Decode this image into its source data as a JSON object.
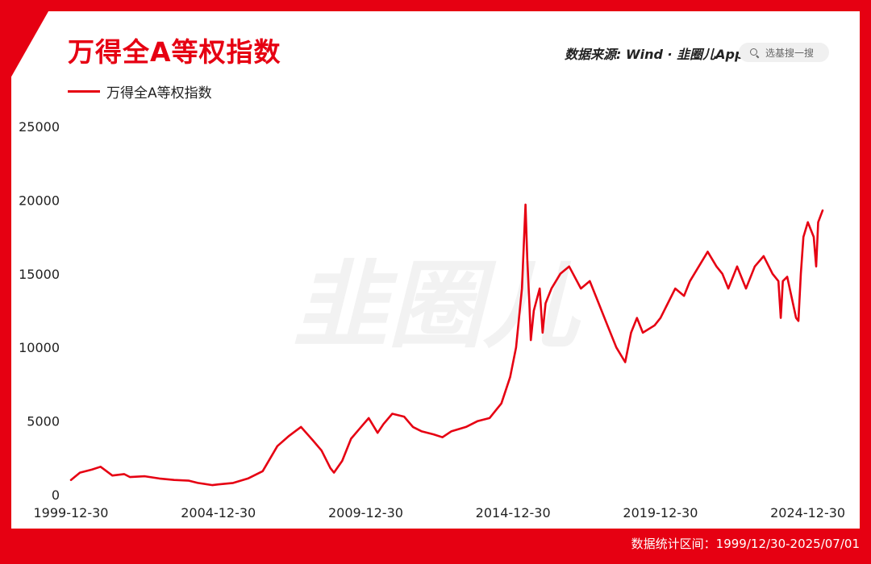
{
  "header": {
    "title": "万得全A等权指数",
    "source": "数据来源: Wind · 韭圈儿App",
    "search_placeholder": "选基搜一搜"
  },
  "footer": {
    "range": "数据统计区间：1999/12/30-2025/07/01"
  },
  "watermark": {
    "text": "韭圈儿"
  },
  "colors": {
    "accent": "#e60012",
    "background": "#ffffff",
    "watermark": "#f2f2f2"
  },
  "icons": {
    "search": "search-icon"
  },
  "chart_data": {
    "type": "line",
    "title": "万得全A等权指数",
    "legend": "top-left",
    "grid": false,
    "ylim": [
      0,
      25000
    ],
    "yticks": [
      0,
      5000,
      10000,
      15000,
      20000,
      25000
    ],
    "ytick_labels": [
      "0",
      "5000",
      "10000",
      "15000",
      "20000",
      "25000"
    ],
    "xlim": [
      1999.997,
      2025.5
    ],
    "xticks": [
      1999.997,
      2004.997,
      2009.997,
      2014.997,
      2019.997,
      2024.997
    ],
    "xtick_labels": [
      "1999-12-30",
      "2004-12-30",
      "2009-12-30",
      "2014-12-30",
      "2019-12-30",
      "2024-12-30"
    ],
    "series": [
      {
        "name": "万得全A等权指数",
        "color": "#e60012",
        "x": [
          1999.997,
          2000.3,
          2000.7,
          2001.0,
          2001.4,
          2001.6,
          2001.8,
          2002.0,
          2002.5,
          2003.0,
          2003.5,
          2004.0,
          2004.3,
          2004.8,
          2005.0,
          2005.5,
          2006.0,
          2006.5,
          2007.0,
          2007.4,
          2007.6,
          2007.8,
          2008.2,
          2008.5,
          2008.8,
          2008.92,
          2009.2,
          2009.5,
          2009.8,
          2010.1,
          2010.4,
          2010.6,
          2010.9,
          2011.3,
          2011.6,
          2011.9,
          2012.3,
          2012.6,
          2012.9,
          2013.4,
          2013.8,
          2014.2,
          2014.6,
          2014.9,
          2015.1,
          2015.3,
          2015.42,
          2015.48,
          2015.55,
          2015.6,
          2015.7,
          2015.9,
          2016.0,
          2016.1,
          2016.3,
          2016.6,
          2016.9,
          2017.3,
          2017.6,
          2017.9,
          2018.2,
          2018.5,
          2018.8,
          2019.0,
          2019.2,
          2019.4,
          2019.8,
          2020.0,
          2020.2,
          2020.5,
          2020.8,
          2021.0,
          2021.3,
          2021.6,
          2021.9,
          2022.1,
          2022.3,
          2022.6,
          2022.9,
          2023.2,
          2023.5,
          2023.8,
          2024.0,
          2024.08,
          2024.15,
          2024.3,
          2024.6,
          2024.68,
          2024.76,
          2024.85,
          2025.0,
          2025.2,
          2025.28,
          2025.35,
          2025.5
        ],
        "values": [
          1000,
          1500,
          1700,
          1900,
          1300,
          1350,
          1400,
          1200,
          1250,
          1100,
          1000,
          950,
          800,
          650,
          700,
          800,
          1100,
          1600,
          3300,
          4000,
          4300,
          4600,
          3700,
          3000,
          1800,
          1500,
          2300,
          3800,
          4500,
          5200,
          4200,
          4800,
          5500,
          5300,
          4600,
          4300,
          4100,
          3900,
          4300,
          4600,
          5000,
          5200,
          6200,
          8000,
          10000,
          14000,
          19700,
          16000,
          13000,
          10500,
          12500,
          14000,
          11000,
          13000,
          14000,
          15000,
          15500,
          14000,
          14500,
          13000,
          11500,
          10000,
          9000,
          11000,
          12000,
          11000,
          11500,
          12000,
          12800,
          14000,
          13500,
          14500,
          15500,
          16500,
          15500,
          15000,
          14000,
          15500,
          14000,
          15500,
          16200,
          15000,
          14500,
          12000,
          14500,
          14800,
          12000,
          11800,
          15000,
          17500,
          18500,
          17500,
          15500,
          18500,
          19300
        ]
      }
    ]
  }
}
